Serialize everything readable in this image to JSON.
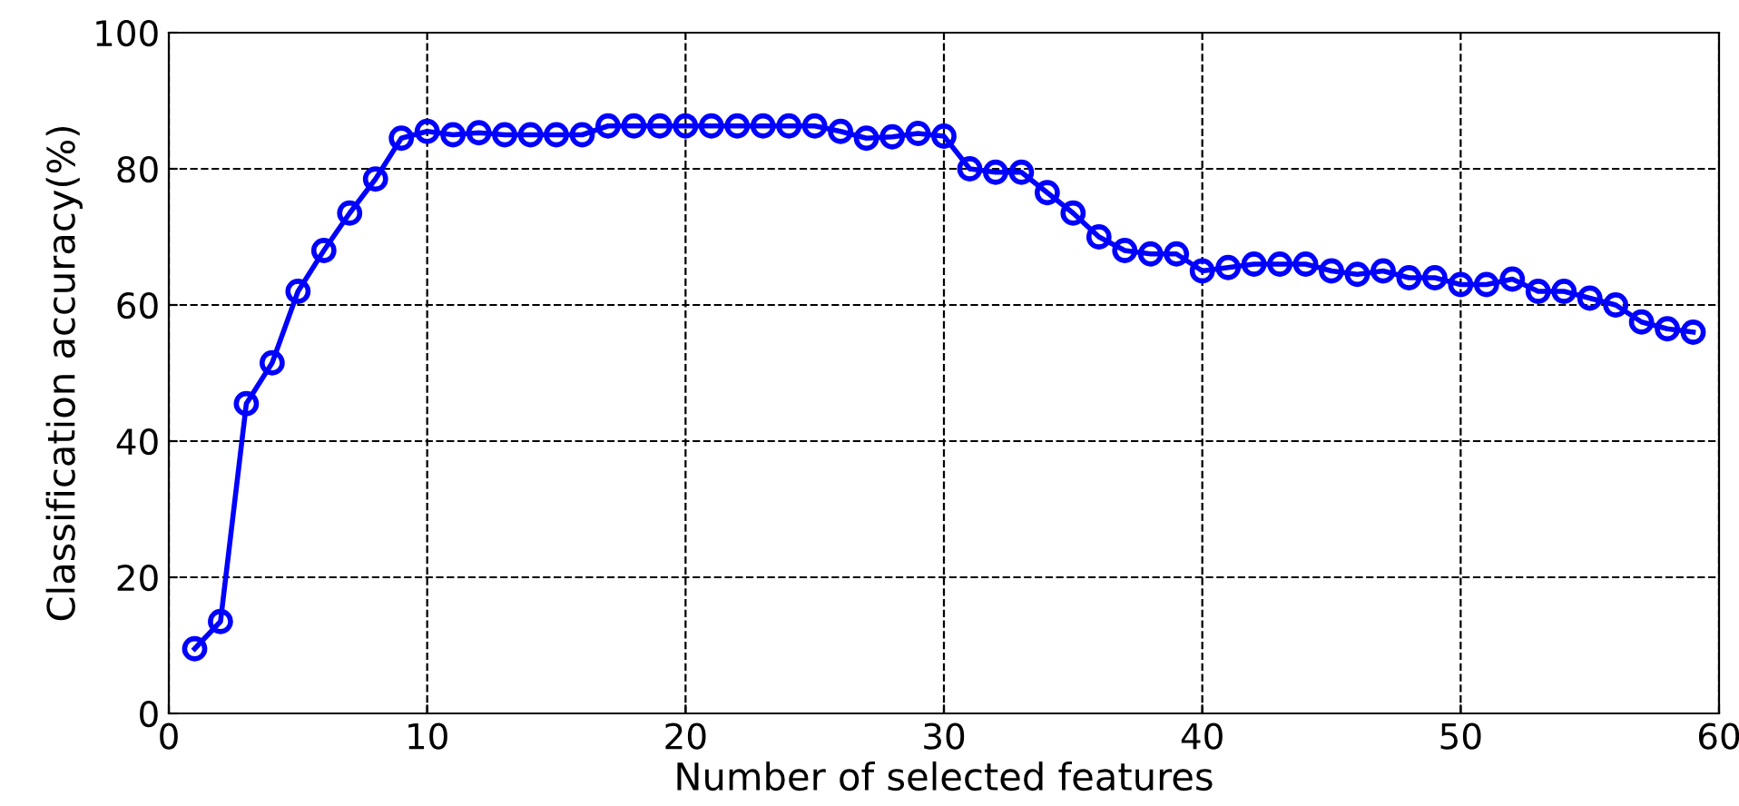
{
  "chart_data": {
    "type": "line",
    "xlabel": "Number of selected features",
    "ylabel": "Classification accuracy(%)",
    "x": [
      1,
      2,
      3,
      4,
      5,
      6,
      7,
      8,
      9,
      10,
      11,
      12,
      13,
      14,
      15,
      16,
      17,
      18,
      19,
      20,
      21,
      22,
      23,
      24,
      25,
      26,
      27,
      28,
      29,
      30,
      31,
      32,
      33,
      34,
      35,
      36,
      37,
      38,
      39,
      40,
      41,
      42,
      43,
      44,
      45,
      46,
      47,
      48,
      49,
      50,
      51,
      52,
      53,
      54,
      55,
      56,
      57,
      58,
      59
    ],
    "series": [
      {
        "color": "#0000ff",
        "values": [
          9.5,
          13.5,
          45.5,
          51.5,
          62,
          68,
          73.5,
          78.5,
          84.5,
          85.5,
          85,
          85.3,
          85,
          85,
          85,
          85,
          86.3,
          86.3,
          86.3,
          86.3,
          86.3,
          86.3,
          86.3,
          86.3,
          86.3,
          85.5,
          84.5,
          84.7,
          85.2,
          84.8,
          80,
          79.5,
          79.5,
          76.5,
          73.5,
          70,
          68,
          67.5,
          67.5,
          65,
          65.5,
          66,
          66,
          66,
          65,
          64.5,
          65,
          64,
          64,
          63,
          63,
          63.8,
          62,
          62,
          61,
          60,
          57.5,
          56.5,
          56
        ]
      }
    ],
    "xlim": [
      0,
      60
    ],
    "ylim": [
      0,
      100
    ],
    "xticks": [
      0,
      10,
      20,
      30,
      40,
      50,
      60
    ],
    "yticks": [
      0,
      20,
      40,
      60,
      80,
      100
    ],
    "grid": true,
    "marker": "circle",
    "line_style": "solid",
    "legend": false
  }
}
